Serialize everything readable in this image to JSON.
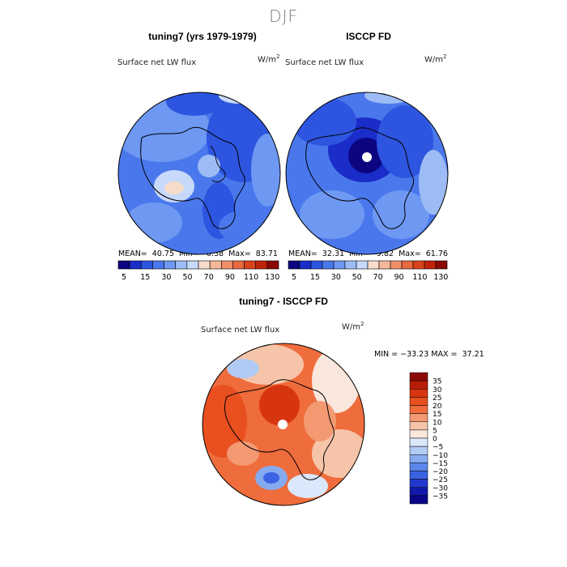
{
  "season": "DJF",
  "panels": {
    "left": {
      "title": "tuning7 (yrs 1979-1979)",
      "variable": "Surface net LW flux",
      "units_base": "W/m",
      "units_exp": "2",
      "stats": "MEAN=  40.75  Min=   6.38  Max=  83.71"
    },
    "right": {
      "title": "ISCCP FD",
      "variable": "Surface net LW flux",
      "units_base": "W/m",
      "units_exp": "2",
      "stats": "MEAN=  32.31  Min=   9.82  Max=  61.76"
    },
    "diff": {
      "title": "tuning7 - ISCCP FD",
      "variable": "Surface net LW flux",
      "units_base": "W/m",
      "units_exp": "2",
      "minmax": "MIN = −33.23 MAX =  37.21"
    }
  },
  "colorbar_top": {
    "tick_labels": [
      "5",
      "15",
      "30",
      "50",
      "70",
      "90",
      "110",
      "130"
    ],
    "colors": [
      "#0b0680",
      "#1a2dc8",
      "#2d55e0",
      "#4a78ec",
      "#6e98f2",
      "#9dbcf6",
      "#c7d9fa",
      "#f6dccb",
      "#f4b79a",
      "#ef8f6a",
      "#e76941",
      "#d9421c",
      "#bf2309",
      "#8c0a05"
    ]
  },
  "colorbar_diff": {
    "tick_labels": [
      "35",
      "30",
      "25",
      "20",
      "15",
      "10",
      "5",
      "0",
      "−5",
      "−10",
      "−15",
      "−20",
      "−25",
      "−30",
      "−35"
    ],
    "colors": [
      "#8c0a05",
      "#b81c07",
      "#d7350f",
      "#e8501f",
      "#ef6c3c",
      "#f39a72",
      "#f6c4a8",
      "#f9e6dc",
      "#dbe7fa",
      "#b2cbf5",
      "#86aaf0",
      "#5c86ea",
      "#3a62e2",
      "#2138cf",
      "#1019a8",
      "#0a0688"
    ]
  }
}
